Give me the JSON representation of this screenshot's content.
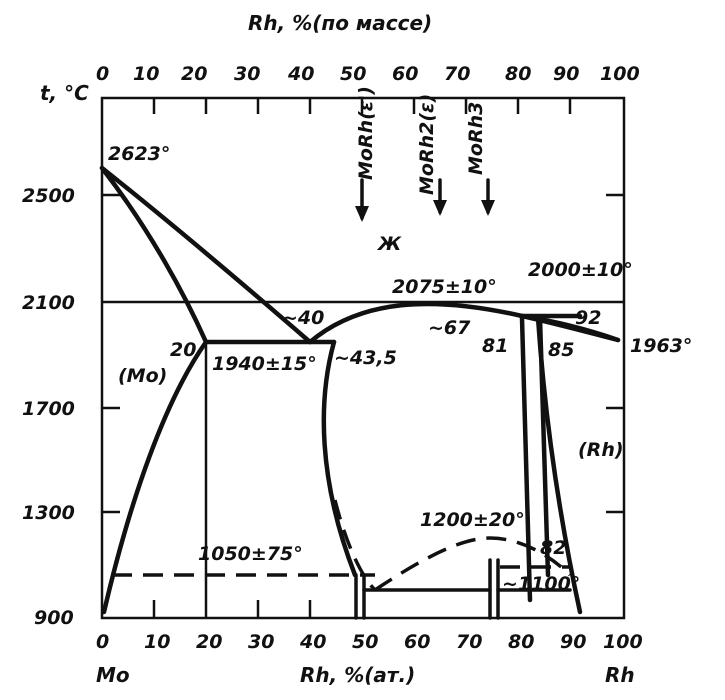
{
  "top_axis": {
    "title": "Rh, %(по массе)",
    "ticks": [
      "0",
      "10",
      "20",
      "30",
      "40",
      "50",
      "60",
      "70",
      "80",
      "90",
      "100"
    ]
  },
  "bottom_axis": {
    "title": "Rh, %(ат.)",
    "ticks": [
      "0",
      "10",
      "20",
      "30",
      "40",
      "50",
      "60",
      "70",
      "80",
      "90",
      "100"
    ],
    "left_end": "Mo",
    "right_end": "Rh"
  },
  "y_axis": {
    "title": "t, °C",
    "ticks": [
      "2500",
      "2100",
      "1700",
      "1300",
      "900"
    ]
  },
  "compounds": [
    "MoRh(ε')",
    "MoRh2(ε)",
    "MoRh3"
  ],
  "phases": {
    "liquid": "Ж",
    "mo": "(Mo)",
    "rh": "(Rh)"
  },
  "annotations": {
    "mo_melt": "2623°",
    "rh_melt": "1963°",
    "eutectic": "1940±15°",
    "congruent": "2075±10°",
    "peritectic": "2000±10°",
    "eutectoid": "1050±75°",
    "order_max": "1200±20°",
    "order_low": "~1100°",
    "c20": "20",
    "c40": "~40",
    "c43": "~43,5",
    "c67": "~67",
    "c81": "81",
    "c85": "85",
    "c92": "92",
    "c82": "82"
  }
}
